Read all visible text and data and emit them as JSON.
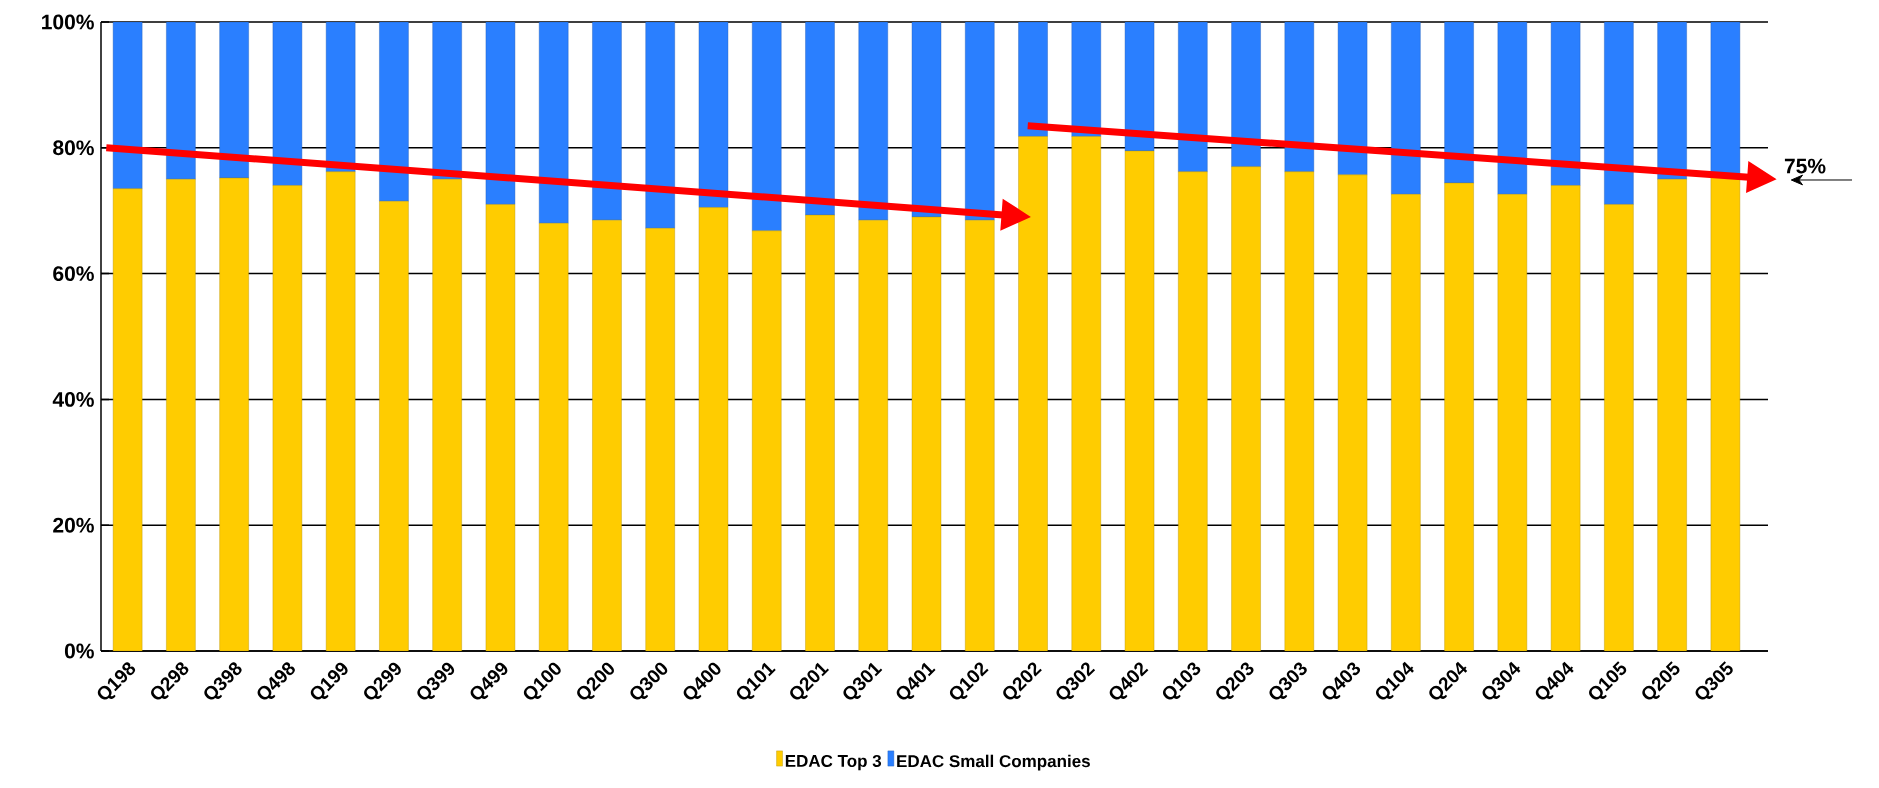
{
  "chart_data": {
    "type": "bar",
    "stacked": true,
    "categories": [
      "Q198",
      "Q298",
      "Q398",
      "Q498",
      "Q199",
      "Q299",
      "Q399",
      "Q499",
      "Q100",
      "Q200",
      "Q300",
      "Q400",
      "Q101",
      "Q201",
      "Q301",
      "Q401",
      "Q102",
      "Q202",
      "Q302",
      "Q402",
      "Q103",
      "Q203",
      "Q303",
      "Q403",
      "Q104",
      "Q204",
      "Q304",
      "Q404",
      "Q105",
      "Q205",
      "Q305"
    ],
    "series": [
      {
        "name": "EDAC Top 3",
        "color": "#ffcc00",
        "values": [
          73.5,
          75,
          75.2,
          74,
          76.2,
          71.5,
          75,
          71,
          68,
          68.5,
          67.2,
          70.5,
          66.8,
          69.3,
          68.5,
          69,
          68.5,
          81.8,
          81.8,
          79.5,
          76.2,
          77,
          76.2,
          75.7,
          72.6,
          74.4,
          72.6,
          74,
          71,
          75,
          75.3
        ]
      },
      {
        "name": "EDAC Small Companies",
        "color": "#2a7fff",
        "values": [
          26.5,
          25,
          24.8,
          26,
          23.8,
          28.5,
          25,
          29,
          32,
          31.5,
          32.8,
          29.5,
          33.2,
          30.7,
          31.5,
          31,
          31.5,
          18.2,
          18.2,
          20.5,
          23.8,
          23,
          23.8,
          24.3,
          27.4,
          25.6,
          27.4,
          26,
          29,
          25,
          24.7
        ]
      }
    ],
    "ylim": [
      0,
      100
    ],
    "yticks": [
      {
        "value": 0,
        "label": "0%"
      },
      {
        "value": 20,
        "label": "20%"
      },
      {
        "value": 40,
        "label": "40%"
      },
      {
        "value": 60,
        "label": "60%"
      },
      {
        "value": 80,
        "label": "80%"
      },
      {
        "value": 100,
        "label": "100%"
      }
    ],
    "grid": "y",
    "legend": "bottom",
    "annotations": [
      "75%"
    ]
  }
}
